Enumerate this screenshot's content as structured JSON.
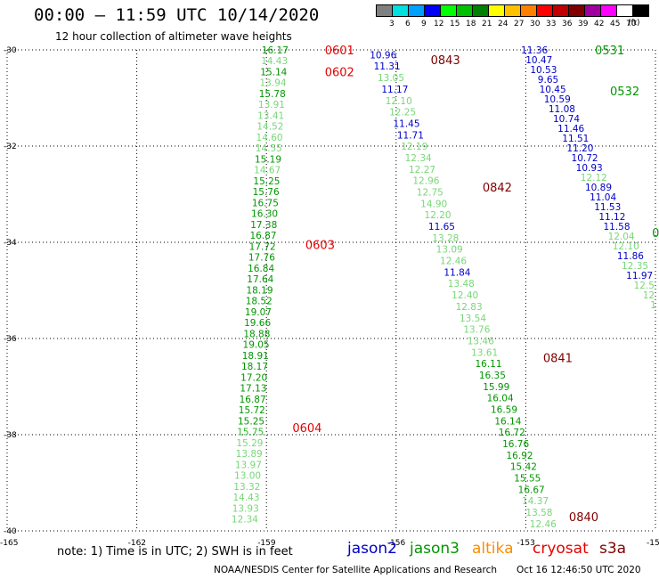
{
  "header": {
    "title": "00:00 – 11:59 UTC 10/14/2020",
    "subtitle": "12 hour collection of altimeter wave heights"
  },
  "colorbar": {
    "cells": [
      {
        "color": "#808080",
        "label": "3"
      },
      {
        "color": "#00e0e0",
        "label": "6"
      },
      {
        "color": "#00a0ff",
        "label": "9"
      },
      {
        "color": "#0000ff",
        "label": "12"
      },
      {
        "color": "#00ff00",
        "label": "15"
      },
      {
        "color": "#00c000",
        "label": "18"
      },
      {
        "color": "#008000",
        "label": "21"
      },
      {
        "color": "#ffff00",
        "label": "24"
      },
      {
        "color": "#ffc000",
        "label": "27"
      },
      {
        "color": "#ff8000",
        "label": "30"
      },
      {
        "color": "#ff0000",
        "label": "33"
      },
      {
        "color": "#c00000",
        "label": "36"
      },
      {
        "color": "#800000",
        "label": "39"
      },
      {
        "color": "#a000a0",
        "label": "42"
      },
      {
        "color": "#ff00ff",
        "label": "45"
      },
      {
        "color": "#ffffff",
        "label": "70"
      },
      {
        "color": "#000000",
        "label": ""
      }
    ],
    "unit": "(ft)"
  },
  "axes": {
    "lat_ticks": [
      -30,
      -32,
      -34,
      -36,
      -38,
      -40
    ],
    "lon_ticks": [
      -165,
      -162,
      -159,
      -156,
      -153,
      -150
    ],
    "lat_labels": [
      "-30",
      "-32",
      "-34",
      "-36",
      "-38",
      "-40"
    ],
    "lon_labels": [
      "-165",
      "-162",
      "-159",
      "-156",
      "-153",
      "-15"
    ]
  },
  "colors": {
    "jason2": "#0000c8",
    "jason3": "#009600",
    "jason3_light": "#5ad25a",
    "altika": "#ff8c00",
    "cryosat": "#e60000",
    "s3a": "#800000"
  },
  "tracks": [
    {
      "name": "jason3-track-1",
      "color_key": "jason3_light",
      "start": [
        -158.8,
        -30.0
      ],
      "end": [
        -159.5,
        -39.75
      ],
      "values": [
        "16.17",
        "14.43",
        "15.14",
        "13.94",
        "15.78",
        "13.91",
        "13.41",
        "14.52",
        "14.60",
        "14.55",
        "15.19",
        "14.67",
        "15.25",
        "15.76",
        "16.75",
        "16.30",
        "17.38",
        "16.87",
        "17.72",
        "17.76",
        "16.84",
        "17.64",
        "18.19",
        "18.52",
        "19.07",
        "19.66",
        "18.88",
        "19.05",
        "18.91",
        "18.17",
        "17.20",
        "17.13",
        "16.87",
        "15.72",
        "15.25",
        "15.75",
        "15.29",
        "13.89",
        "13.97",
        "13.00",
        "13.32",
        "14.43",
        "13.93",
        "12.34"
      ],
      "shades": [
        0,
        2,
        0,
        2,
        0,
        2,
        2,
        2,
        2,
        2,
        0,
        2,
        0,
        0,
        0,
        0,
        0,
        0,
        0,
        0,
        0,
        0,
        0,
        0,
        0,
        0,
        0,
        0,
        0,
        0,
        0,
        0,
        0,
        0,
        0,
        1,
        2,
        2,
        2,
        2,
        2,
        2,
        2,
        2
      ]
    },
    {
      "name": "jason3-track-2",
      "color_key": "jason3_light",
      "start": [
        -156.3,
        -30.1
      ],
      "end": [
        -152.6,
        -39.85
      ],
      "values": [
        "10.96",
        "11.31",
        "13.05",
        "11.17",
        "12.10",
        "12.25",
        "11.45",
        "11.71",
        "12.19",
        "12.34",
        "12.27",
        "12.96",
        "12.75",
        "14.90",
        "12.20",
        "11.65",
        "13.28",
        "13.09",
        "12.46",
        "11.84",
        "13.48",
        "12.40",
        "12.83",
        "13.54",
        "13.76",
        "13.46",
        "13.61",
        "16.11",
        "16.35",
        "15.99",
        "16.04",
        "16.59",
        "16.14",
        "16.72",
        "16.76",
        "16.92",
        "15.42",
        "15.55",
        "16.67",
        "14.37",
        "13.58",
        "12.46"
      ],
      "shades": [
        3,
        3,
        2,
        3,
        2,
        2,
        3,
        3,
        2,
        2,
        2,
        2,
        2,
        2,
        2,
        3,
        2,
        2,
        2,
        3,
        2,
        2,
        2,
        2,
        2,
        2,
        2,
        0,
        0,
        0,
        0,
        0,
        0,
        0,
        0,
        0,
        0,
        0,
        0,
        2,
        2,
        2
      ]
    },
    {
      "name": "jason2-track",
      "color_key": "jason2",
      "start": [
        -152.8,
        -30.0
      ],
      "end": [
        -150.05,
        -35.3
      ],
      "values": [
        "11.36",
        "10.47",
        "10.53",
        "9.65",
        "10.45",
        "10.59",
        "11.08",
        "10.74",
        "11.46",
        "11.51",
        "11.20",
        "10.72",
        "10.93",
        "12.12",
        "10.89",
        "11.04",
        "11.53",
        "11.12",
        "11.58",
        "12.04",
        "12.10",
        "11.86",
        "12.35",
        "11.97",
        "12.5",
        "12",
        "1"
      ],
      "shades": [
        3,
        3,
        3,
        3,
        3,
        3,
        3,
        3,
        3,
        3,
        3,
        3,
        3,
        2,
        3,
        3,
        3,
        3,
        3,
        2,
        2,
        3,
        2,
        3,
        2,
        2,
        2
      ]
    }
  ],
  "pass_labels": [
    {
      "text": "0601",
      "lon": -157.65,
      "lat": -30.0,
      "color_key": "cryosat"
    },
    {
      "text": "0602",
      "lon": -157.65,
      "lat": -30.45,
      "color_key": "cryosat"
    },
    {
      "text": "0603",
      "lon": -158.1,
      "lat": -34.05,
      "color_key": "cryosat"
    },
    {
      "text": "0604",
      "lon": -158.4,
      "lat": -37.85,
      "color_key": "cryosat"
    },
    {
      "text": "0843",
      "lon": -155.2,
      "lat": -30.2,
      "color_key": "s3a"
    },
    {
      "text": "0842",
      "lon": -154.0,
      "lat": -32.85,
      "color_key": "s3a"
    },
    {
      "text": "0841",
      "lon": -152.6,
      "lat": -36.4,
      "color_key": "s3a"
    },
    {
      "text": "0840",
      "lon": -152.0,
      "lat": -39.7,
      "color_key": "s3a"
    },
    {
      "text": "0531",
      "lon": -151.4,
      "lat": -30.0,
      "color_key": "jason3"
    },
    {
      "text": "0532",
      "lon": -151.05,
      "lat": -30.85,
      "color_key": "jason3"
    },
    {
      "text": "0",
      "lon": -150.08,
      "lat": -33.8,
      "color_key": "jason3"
    }
  ],
  "note": "note: 1) Time is in UTC; 2) SWH is in feet",
  "legend": [
    {
      "text": "jason2",
      "color_key": "jason2"
    },
    {
      "text": "jason3",
      "color_key": "jason3"
    },
    {
      "text": "altika",
      "color_key": "altika"
    },
    {
      "text": "cryosat",
      "color_key": "cryosat"
    },
    {
      "text": "s3a",
      "color_key": "s3a"
    }
  ],
  "footer": {
    "credit": "NOAA/NESDIS Center for Satellite Applications and Research",
    "timestamp": "Oct 16 12:46:50 UTC 2020"
  }
}
